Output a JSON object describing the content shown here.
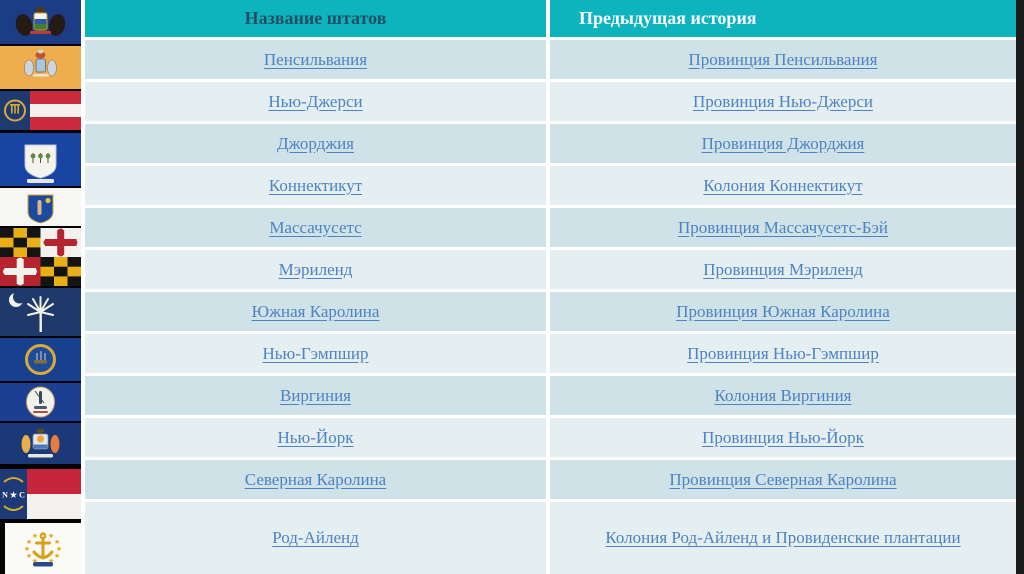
{
  "table": {
    "headers": {
      "states": "Название штатов",
      "history": "Предыдущая история"
    },
    "rows": [
      {
        "state": "Пенсильвания",
        "history": "Провинция Пенсильвания"
      },
      {
        "state": "Нью-Джерси",
        "history": "Провинция Нью-Джерси"
      },
      {
        "state": "Джорджия",
        "history": "Провинция Джорджия"
      },
      {
        "state": "Коннектикут",
        "history": "Колония Коннектикут"
      },
      {
        "state": "Массачусетс",
        "history": "Провинция Массачусетс-Бэй"
      },
      {
        "state": "Мэриленд",
        "history": "Провинция Мэриленд"
      },
      {
        "state": "Южная Каролина",
        "history": "Провинция Южная Каролина"
      },
      {
        "state": "Нью-Гэмпшир",
        "history": "Провинция Нью-Гэмпшир"
      },
      {
        "state": "Виргиния",
        "history": "Колония Виргиния"
      },
      {
        "state": "Нью-Йорк",
        "history": "Провинция Нью-Йорк"
      },
      {
        "state": "Северная Каролина",
        "history": "Провинция Северная Каролина"
      },
      {
        "state": "Род-Айленд",
        "history": "Колония Род-Айленд и Провиденские плантации"
      }
    ]
  },
  "flags": [
    "pennsylvania-flag",
    "new-jersey-flag",
    "georgia-flag",
    "connecticut-flag",
    "massachusetts-flag",
    "maryland-flag",
    "south-carolina-flag",
    "new-hampshire-flag",
    "virginia-flag",
    "new-york-flag",
    "north-carolina-flag",
    "rhode-island-flag"
  ],
  "flags_text": {
    "north_carolina": "N ★ C"
  },
  "colors": {
    "header_bg": "#0db3bd",
    "header_text_states": "#234f66",
    "header_text_history": "#f7fdfd",
    "row_odd": "#cfe2e7",
    "row_even": "#e5eff1",
    "link": "#4d82c3",
    "divider": "#ffffff",
    "right_edge": "#1b1b1b"
  }
}
